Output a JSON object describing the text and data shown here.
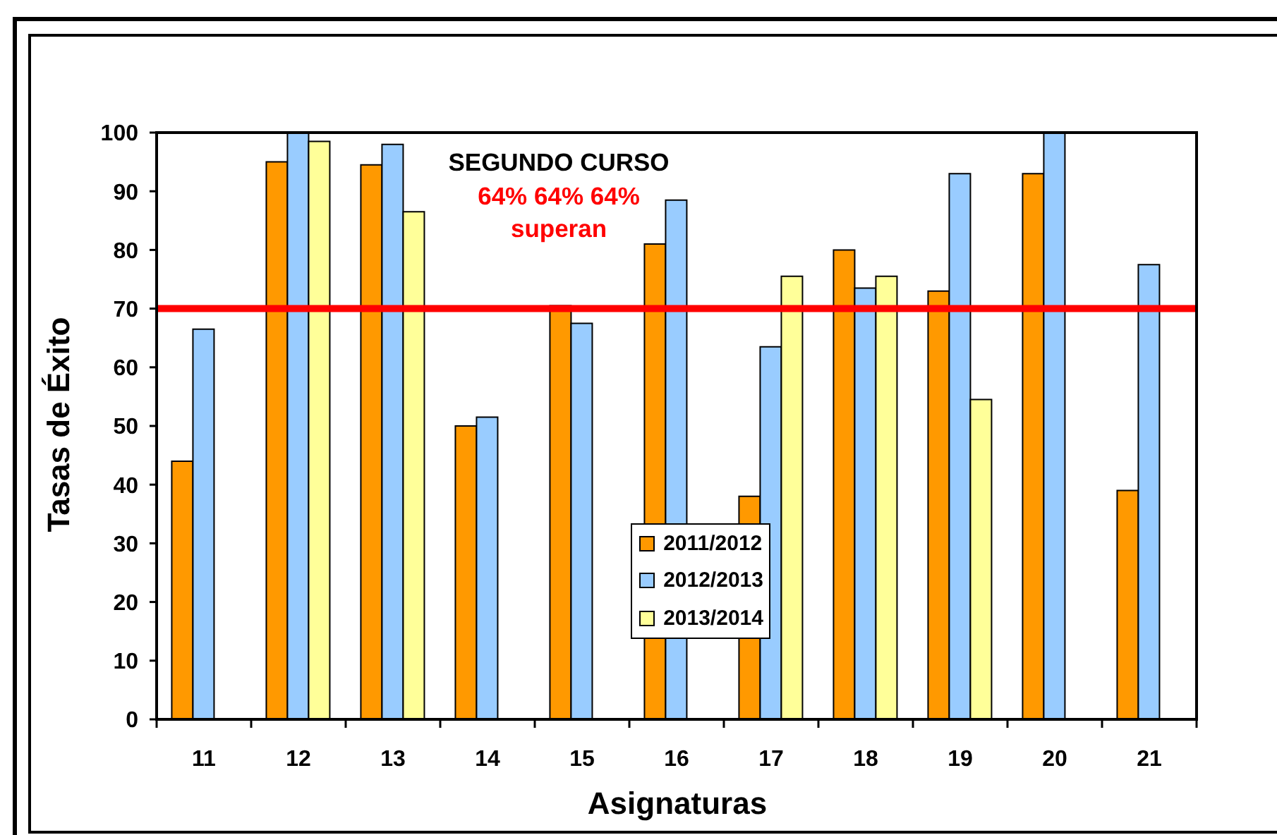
{
  "chart_data": {
    "type": "bar",
    "xlabel": "Asignaturas",
    "ylabel": "Tasas de Éxito",
    "categories": [
      "11",
      "12",
      "13",
      "14",
      "15",
      "16",
      "17",
      "18",
      "19",
      "20",
      "21"
    ],
    "series": [
      {
        "name": "2011/2012",
        "color": "#ff9900",
        "values": [
          44,
          95,
          94.5,
          50,
          70.5,
          81,
          38,
          80,
          73,
          93,
          39
        ]
      },
      {
        "name": "2012/2013",
        "color": "#99ccff",
        "values": [
          66.5,
          100,
          98,
          51.5,
          67.5,
          88.5,
          63.5,
          73.5,
          93,
          100,
          77.5
        ]
      },
      {
        "name": "2013/2014",
        "color": "#ffff99",
        "values": [
          null,
          98.5,
          86.5,
          null,
          null,
          null,
          75.5,
          75.5,
          54.5,
          null,
          null
        ]
      }
    ],
    "ylim": [
      0,
      100
    ],
    "yticks": [
      0,
      10,
      20,
      30,
      40,
      50,
      60,
      70,
      80,
      90,
      100
    ],
    "ref_lines": [
      {
        "axis": "y",
        "value": 70,
        "color": "#ff0000"
      }
    ],
    "annotations": [
      "SEGUNDO CURSO",
      "64% 64% 64%",
      "superan"
    ],
    "legend": "bottom"
  }
}
